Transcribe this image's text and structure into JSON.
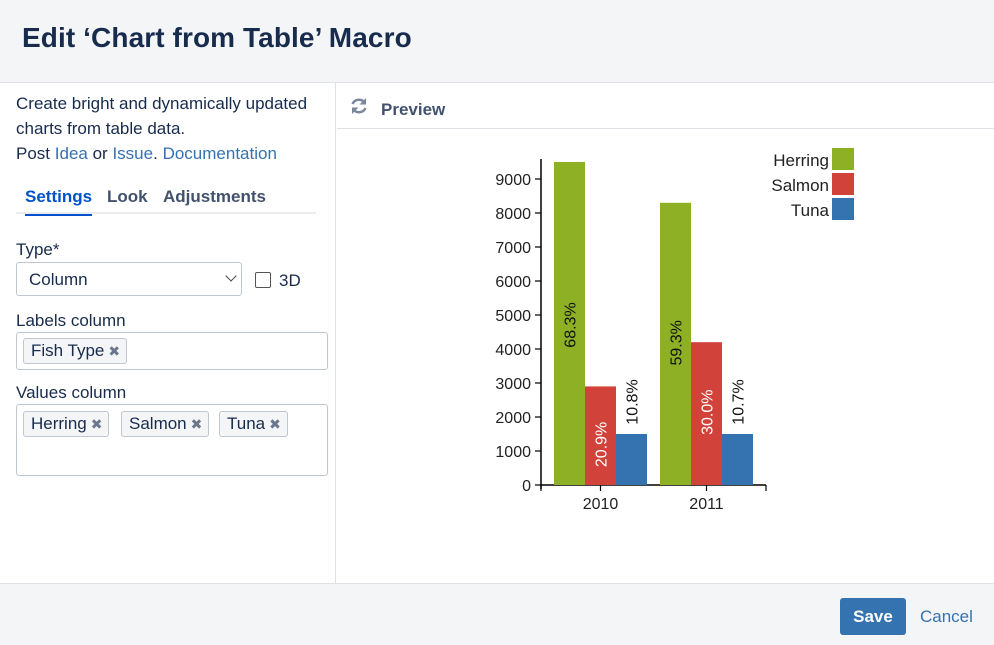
{
  "dialog": {
    "title": "Edit ‘Chart from Table’ Macro"
  },
  "sidebar": {
    "description": "Create bright and dynamically updated charts from table data.",
    "post_prefix": "Post",
    "idea_link": "Idea",
    "or_text": "or",
    "issue_link": "Issue",
    "period": ".",
    "documentation_link": "Documentation",
    "tabs": [
      "Settings",
      "Look",
      "Adjustments"
    ],
    "type_label": "Type*",
    "type_value": "Column",
    "three_d_label": "3D",
    "labels_column_label": "Labels column",
    "labels_column_chips": [
      "Fish Type"
    ],
    "values_column_label": "Values column",
    "values_column_chips": [
      "Herring",
      "Salmon",
      "Tuna"
    ],
    "chip_remove_glyph": "✖"
  },
  "preview": {
    "title": "Preview",
    "refresh_icon": "refresh-icon"
  },
  "footer": {
    "save_label": "Save",
    "cancel_label": "Cancel"
  },
  "colors": {
    "herring": "#8db024",
    "salmon": "#d1433a",
    "tuna": "#3572b0",
    "primary": "#3572b0"
  },
  "chart_data": {
    "type": "bar",
    "categories": [
      "2010",
      "2011"
    ],
    "series": [
      {
        "name": "Herring",
        "values": [
          9500,
          8300
        ],
        "labels": [
          "68.3%",
          "59.3%"
        ],
        "color": "#8db024"
      },
      {
        "name": "Salmon",
        "values": [
          2900,
          4200
        ],
        "labels": [
          "20.9%",
          "30.0%"
        ],
        "color": "#d1433a"
      },
      {
        "name": "Tuna",
        "values": [
          1500,
          1500
        ],
        "labels": [
          "10.8%",
          "10.7%"
        ],
        "color": "#3572b0"
      }
    ],
    "yticks": [
      "0",
      "1000",
      "2000",
      "3000",
      "4000",
      "5000",
      "6000",
      "7000",
      "8000",
      "9000"
    ],
    "ylim": [
      0,
      9500
    ],
    "legend": "top-right"
  }
}
